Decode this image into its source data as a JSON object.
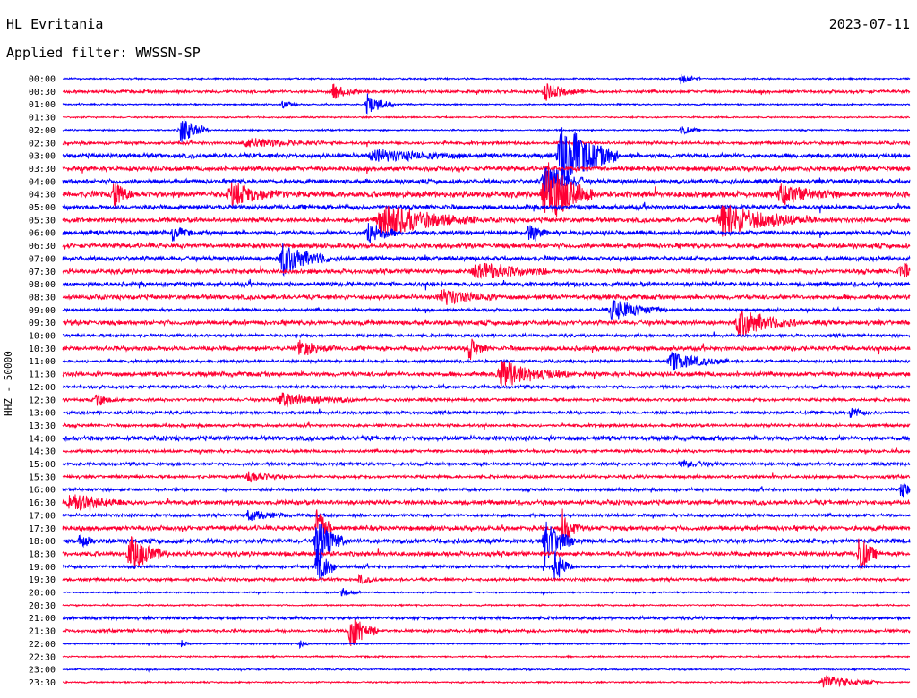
{
  "header": {
    "station": "HL Evritania",
    "date": "2023-07-11",
    "filter": "Applied filter: WWSSN-SP"
  },
  "chart_data": {
    "type": "line",
    "title": "HL Evritania",
    "ylabel": "HHZ - 50000",
    "colors": {
      "even_row": "#0000ff",
      "odd_row": "#ff0033"
    },
    "rows": [
      "00:00",
      "00:30",
      "01:00",
      "01:30",
      "02:00",
      "02:30",
      "03:00",
      "03:30",
      "04:00",
      "04:30",
      "05:00",
      "05:30",
      "06:00",
      "06:30",
      "07:00",
      "07:30",
      "08:00",
      "08:30",
      "09:00",
      "09:30",
      "10:00",
      "10:30",
      "11:00",
      "11:30",
      "12:00",
      "12:30",
      "13:00",
      "13:30",
      "14:00",
      "14:30",
      "15:00",
      "15:30",
      "16:00",
      "16:30",
      "17:00",
      "17:30",
      "18:00",
      "18:30",
      "19:00",
      "19:30",
      "20:00",
      "20:30",
      "21:00",
      "21:30",
      "22:00",
      "22:30",
      "23:00",
      "23:30"
    ],
    "noise_level": [
      1,
      2,
      1,
      1,
      1,
      2,
      3,
      3,
      3,
      4,
      3,
      3,
      3,
      3,
      3,
      3,
      3,
      3,
      2,
      3,
      2,
      3,
      2,
      3,
      2,
      2,
      2,
      2,
      3,
      2,
      2,
      2,
      2,
      3,
      2,
      3,
      3,
      3,
      2,
      2,
      1,
      1,
      2,
      2,
      1,
      1,
      1,
      1
    ],
    "events": [
      {
        "row": 0,
        "t": 0.73,
        "amp": 6,
        "dur": 0.01
      },
      {
        "row": 1,
        "t": 0.32,
        "amp": 8,
        "dur": 0.015
      },
      {
        "row": 1,
        "t": 0.57,
        "amp": 9,
        "dur": 0.02
      },
      {
        "row": 2,
        "t": 0.36,
        "amp": 12,
        "dur": 0.015
      },
      {
        "row": 2,
        "t": 0.26,
        "amp": 5,
        "dur": 0.008
      },
      {
        "row": 4,
        "t": 0.14,
        "amp": 16,
        "dur": 0.015
      },
      {
        "row": 4,
        "t": 0.73,
        "amp": 6,
        "dur": 0.01
      },
      {
        "row": 5,
        "t": 0.22,
        "amp": 5,
        "dur": 0.04
      },
      {
        "row": 6,
        "t": 0.59,
        "amp": 40,
        "dur": 0.03
      },
      {
        "row": 6,
        "t": 0.37,
        "amp": 6,
        "dur": 0.05
      },
      {
        "row": 8,
        "t": 0.57,
        "amp": 24,
        "dur": 0.02
      },
      {
        "row": 9,
        "t": 0.06,
        "amp": 16,
        "dur": 0.01
      },
      {
        "row": 9,
        "t": 0.2,
        "amp": 12,
        "dur": 0.03
      },
      {
        "row": 9,
        "t": 0.57,
        "amp": 40,
        "dur": 0.025
      },
      {
        "row": 9,
        "t": 0.85,
        "amp": 10,
        "dur": 0.03
      },
      {
        "row": 11,
        "t": 0.38,
        "amp": 18,
        "dur": 0.05
      },
      {
        "row": 11,
        "t": 0.78,
        "amp": 18,
        "dur": 0.05
      },
      {
        "row": 12,
        "t": 0.36,
        "amp": 14,
        "dur": 0.015
      },
      {
        "row": 12,
        "t": 0.55,
        "amp": 10,
        "dur": 0.01
      },
      {
        "row": 12,
        "t": 0.13,
        "amp": 8,
        "dur": 0.01
      },
      {
        "row": 14,
        "t": 0.26,
        "amp": 18,
        "dur": 0.025
      },
      {
        "row": 15,
        "t": 0.49,
        "amp": 10,
        "dur": 0.04
      },
      {
        "row": 15,
        "t": 0.99,
        "amp": 8,
        "dur": 0.02
      },
      {
        "row": 17,
        "t": 0.45,
        "amp": 8,
        "dur": 0.03
      },
      {
        "row": 18,
        "t": 0.65,
        "amp": 12,
        "dur": 0.03
      },
      {
        "row": 19,
        "t": 0.8,
        "amp": 16,
        "dur": 0.03
      },
      {
        "row": 21,
        "t": 0.28,
        "amp": 8,
        "dur": 0.02
      },
      {
        "row": 21,
        "t": 0.48,
        "amp": 12,
        "dur": 0.01
      },
      {
        "row": 22,
        "t": 0.72,
        "amp": 10,
        "dur": 0.03
      },
      {
        "row": 23,
        "t": 0.52,
        "amp": 14,
        "dur": 0.035
      },
      {
        "row": 25,
        "t": 0.04,
        "amp": 8,
        "dur": 0.01
      },
      {
        "row": 25,
        "t": 0.26,
        "amp": 8,
        "dur": 0.04
      },
      {
        "row": 26,
        "t": 0.93,
        "amp": 6,
        "dur": 0.01
      },
      {
        "row": 30,
        "t": 0.73,
        "amp": 4,
        "dur": 0.02
      },
      {
        "row": 31,
        "t": 0.22,
        "amp": 6,
        "dur": 0.02
      },
      {
        "row": 32,
        "t": 0.99,
        "amp": 8,
        "dur": 0.015
      },
      {
        "row": 33,
        "t": 0.01,
        "amp": 10,
        "dur": 0.03
      },
      {
        "row": 34,
        "t": 0.22,
        "amp": 6,
        "dur": 0.02
      },
      {
        "row": 35,
        "t": 0.3,
        "amp": 24,
        "dur": 0.01
      },
      {
        "row": 35,
        "t": 0.59,
        "amp": 20,
        "dur": 0.01
      },
      {
        "row": 36,
        "t": 0.3,
        "amp": 30,
        "dur": 0.015
      },
      {
        "row": 36,
        "t": 0.57,
        "amp": 28,
        "dur": 0.015
      },
      {
        "row": 36,
        "t": 0.02,
        "amp": 6,
        "dur": 0.01
      },
      {
        "row": 37,
        "t": 0.08,
        "amp": 20,
        "dur": 0.02
      },
      {
        "row": 37,
        "t": 0.94,
        "amp": 24,
        "dur": 0.01
      },
      {
        "row": 38,
        "t": 0.3,
        "amp": 30,
        "dur": 0.01
      },
      {
        "row": 38,
        "t": 0.58,
        "amp": 20,
        "dur": 0.01
      },
      {
        "row": 39,
        "t": 0.35,
        "amp": 5,
        "dur": 0.01
      },
      {
        "row": 40,
        "t": 0.33,
        "amp": 5,
        "dur": 0.01
      },
      {
        "row": 43,
        "t": 0.34,
        "amp": 20,
        "dur": 0.015
      },
      {
        "row": 44,
        "t": 0.14,
        "amp": 5,
        "dur": 0.005
      },
      {
        "row": 44,
        "t": 0.28,
        "amp": 5,
        "dur": 0.005
      },
      {
        "row": 47,
        "t": 0.9,
        "amp": 8,
        "dur": 0.03
      }
    ]
  }
}
